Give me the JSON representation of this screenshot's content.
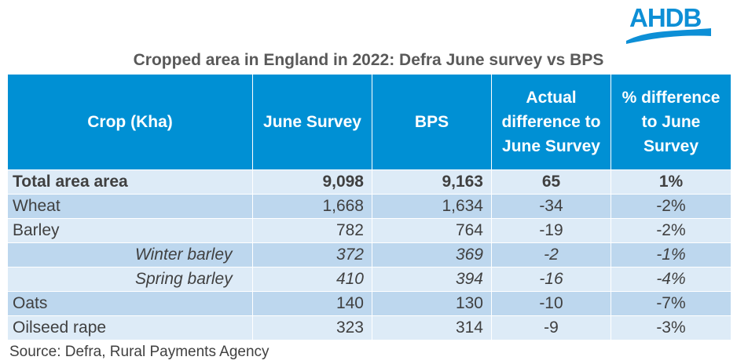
{
  "logo": {
    "text": "AHDB",
    "color": "#0d8fd6"
  },
  "title": "Cropped area in England in 2022: Defra June survey vs BPS",
  "headers": [
    "Crop (Kha)",
    "June Survey",
    "BPS",
    "Actual difference to June Survey",
    "% difference to June Survey"
  ],
  "rows": [
    {
      "crop": "Total area area",
      "june": "9,098",
      "bps": "9,163",
      "diff": "65",
      "pct": "1%"
    },
    {
      "crop": "Wheat",
      "june": "1,668",
      "bps": "1,634",
      "diff": "-34",
      "pct": "-2%"
    },
    {
      "crop": "Barley",
      "june": "782",
      "bps": "764",
      "diff": "-19",
      "pct": "-2%"
    },
    {
      "crop": "Winter barley",
      "june": "372",
      "bps": "369",
      "diff": "-2",
      "pct": "-1%"
    },
    {
      "crop": "Spring barley",
      "june": "410",
      "bps": "394",
      "diff": "-16",
      "pct": "-4%"
    },
    {
      "crop": "Oats",
      "june": "140",
      "bps": "130",
      "diff": "-10",
      "pct": "-7%"
    },
    {
      "crop": "Oilseed rape",
      "june": "323",
      "bps": "314",
      "diff": "-9",
      "pct": "-3%"
    }
  ],
  "source": "Source: Defra, Rural Payments Agency",
  "colors": {
    "header": "#0090d4",
    "row_light": "#ddebf7",
    "row_dark": "#bdd7ee"
  }
}
